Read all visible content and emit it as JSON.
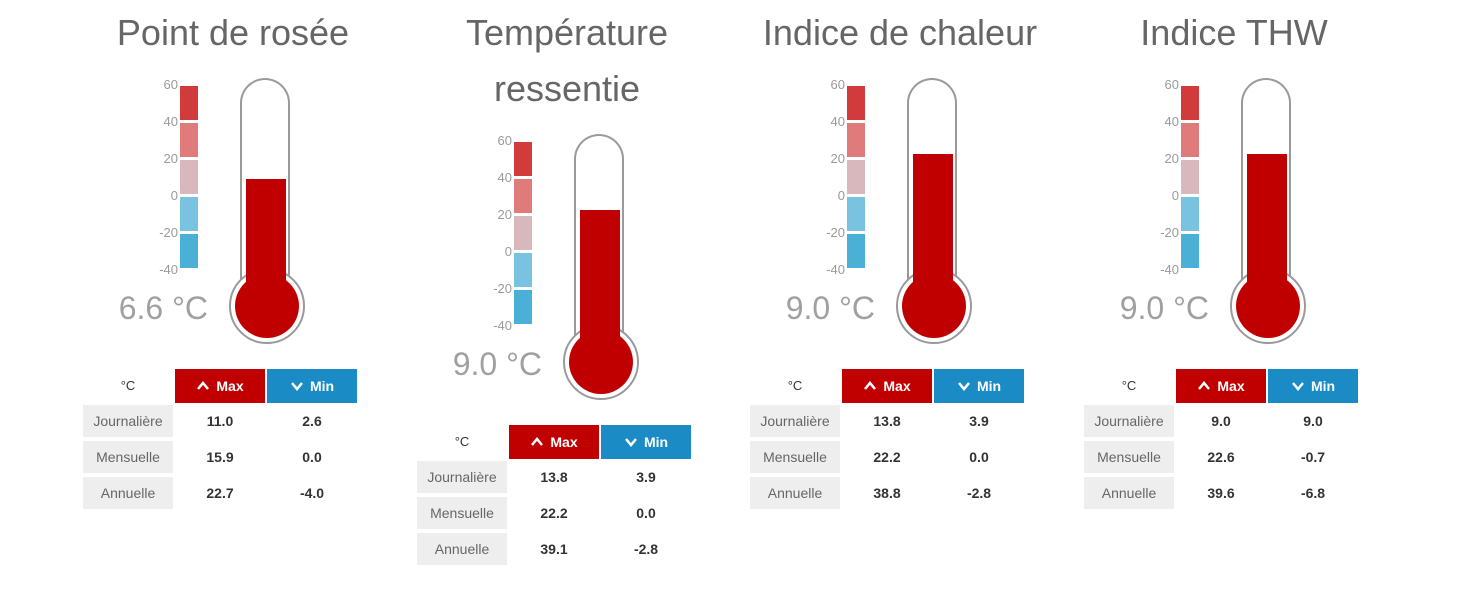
{
  "scale": {
    "labels": [
      "60",
      "40",
      "20",
      "0",
      "-20",
      "-40"
    ],
    "colors": [
      "#d13b3b",
      "#e07b7b",
      "#d9b8bd",
      "#7ac3e0",
      "#4ab0d6"
    ]
  },
  "table_header": {
    "unit": "°C",
    "max_label": "Max",
    "min_label": "Min"
  },
  "row_labels": {
    "daily": "Journalière",
    "monthly": "Mensuelle",
    "annual": "Annuelle"
  },
  "widgets": [
    {
      "title": "Point de rosée",
      "value": "6.6 °C",
      "value_num": 6.6,
      "stats": {
        "daily": [
          "11.0",
          "2.6"
        ],
        "monthly": [
          "15.9",
          "0.0"
        ],
        "annual": [
          "22.7",
          "-4.0"
        ]
      }
    },
    {
      "title_line1": "Température",
      "title_line2": "ressentie",
      "value": "9.0 °C",
      "value_num": 9.0,
      "stats": {
        "daily": [
          "13.8",
          "3.9"
        ],
        "monthly": [
          "22.2",
          "0.0"
        ],
        "annual": [
          "39.1",
          "-2.8"
        ]
      }
    },
    {
      "title": "Indice de chaleur",
      "value": "9.0 °C",
      "value_num": 9.0,
      "stats": {
        "daily": [
          "13.8",
          "3.9"
        ],
        "monthly": [
          "22.2",
          "0.0"
        ],
        "annual": [
          "38.8",
          "-2.8"
        ]
      }
    },
    {
      "title": "Indice THW",
      "value": "9.0 °C",
      "value_num": 9.0,
      "stats": {
        "daily": [
          "9.0",
          "9.0"
        ],
        "monthly": [
          "22.6",
          "-0.7"
        ],
        "annual": [
          "39.6",
          "-6.8"
        ]
      }
    }
  ],
  "accent": {
    "max": "#c00000",
    "min": "#1a8bc4",
    "mercury": "#c00000"
  }
}
